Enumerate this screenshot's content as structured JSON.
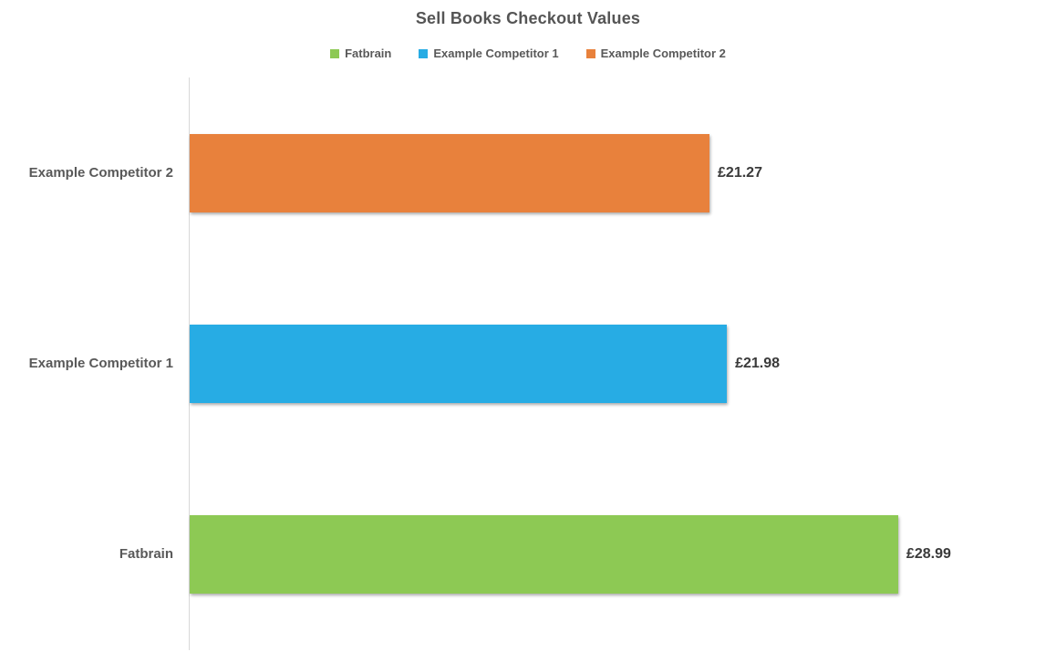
{
  "chart_data": {
    "type": "bar",
    "orientation": "horizontal",
    "title": "Sell Books Checkout Values",
    "categories": [
      "Example Competitor 2",
      "Example Competitor 1",
      "Fatbrain"
    ],
    "values": [
      21.27,
      21.98,
      28.99
    ],
    "value_labels": [
      "£21.27",
      "£21.98",
      "£28.99"
    ],
    "bar_colors": [
      "#e8813c",
      "#27ace4",
      "#8dc954"
    ],
    "xlim": [
      0,
      29.5
    ],
    "xlabel": "",
    "ylabel": "",
    "grid": false,
    "legend_position": "top",
    "legend": [
      {
        "label": "Fatbrain",
        "color": "#8dc954"
      },
      {
        "label": "Example Competitor 1",
        "color": "#27ace4"
      },
      {
        "label": "Example Competitor 2",
        "color": "#e8813c"
      }
    ],
    "axis_line_color": "#d8d8d8",
    "title_color": "#555555",
    "category_label_color": "#595959",
    "value_label_color": "#3a3a3a"
  }
}
